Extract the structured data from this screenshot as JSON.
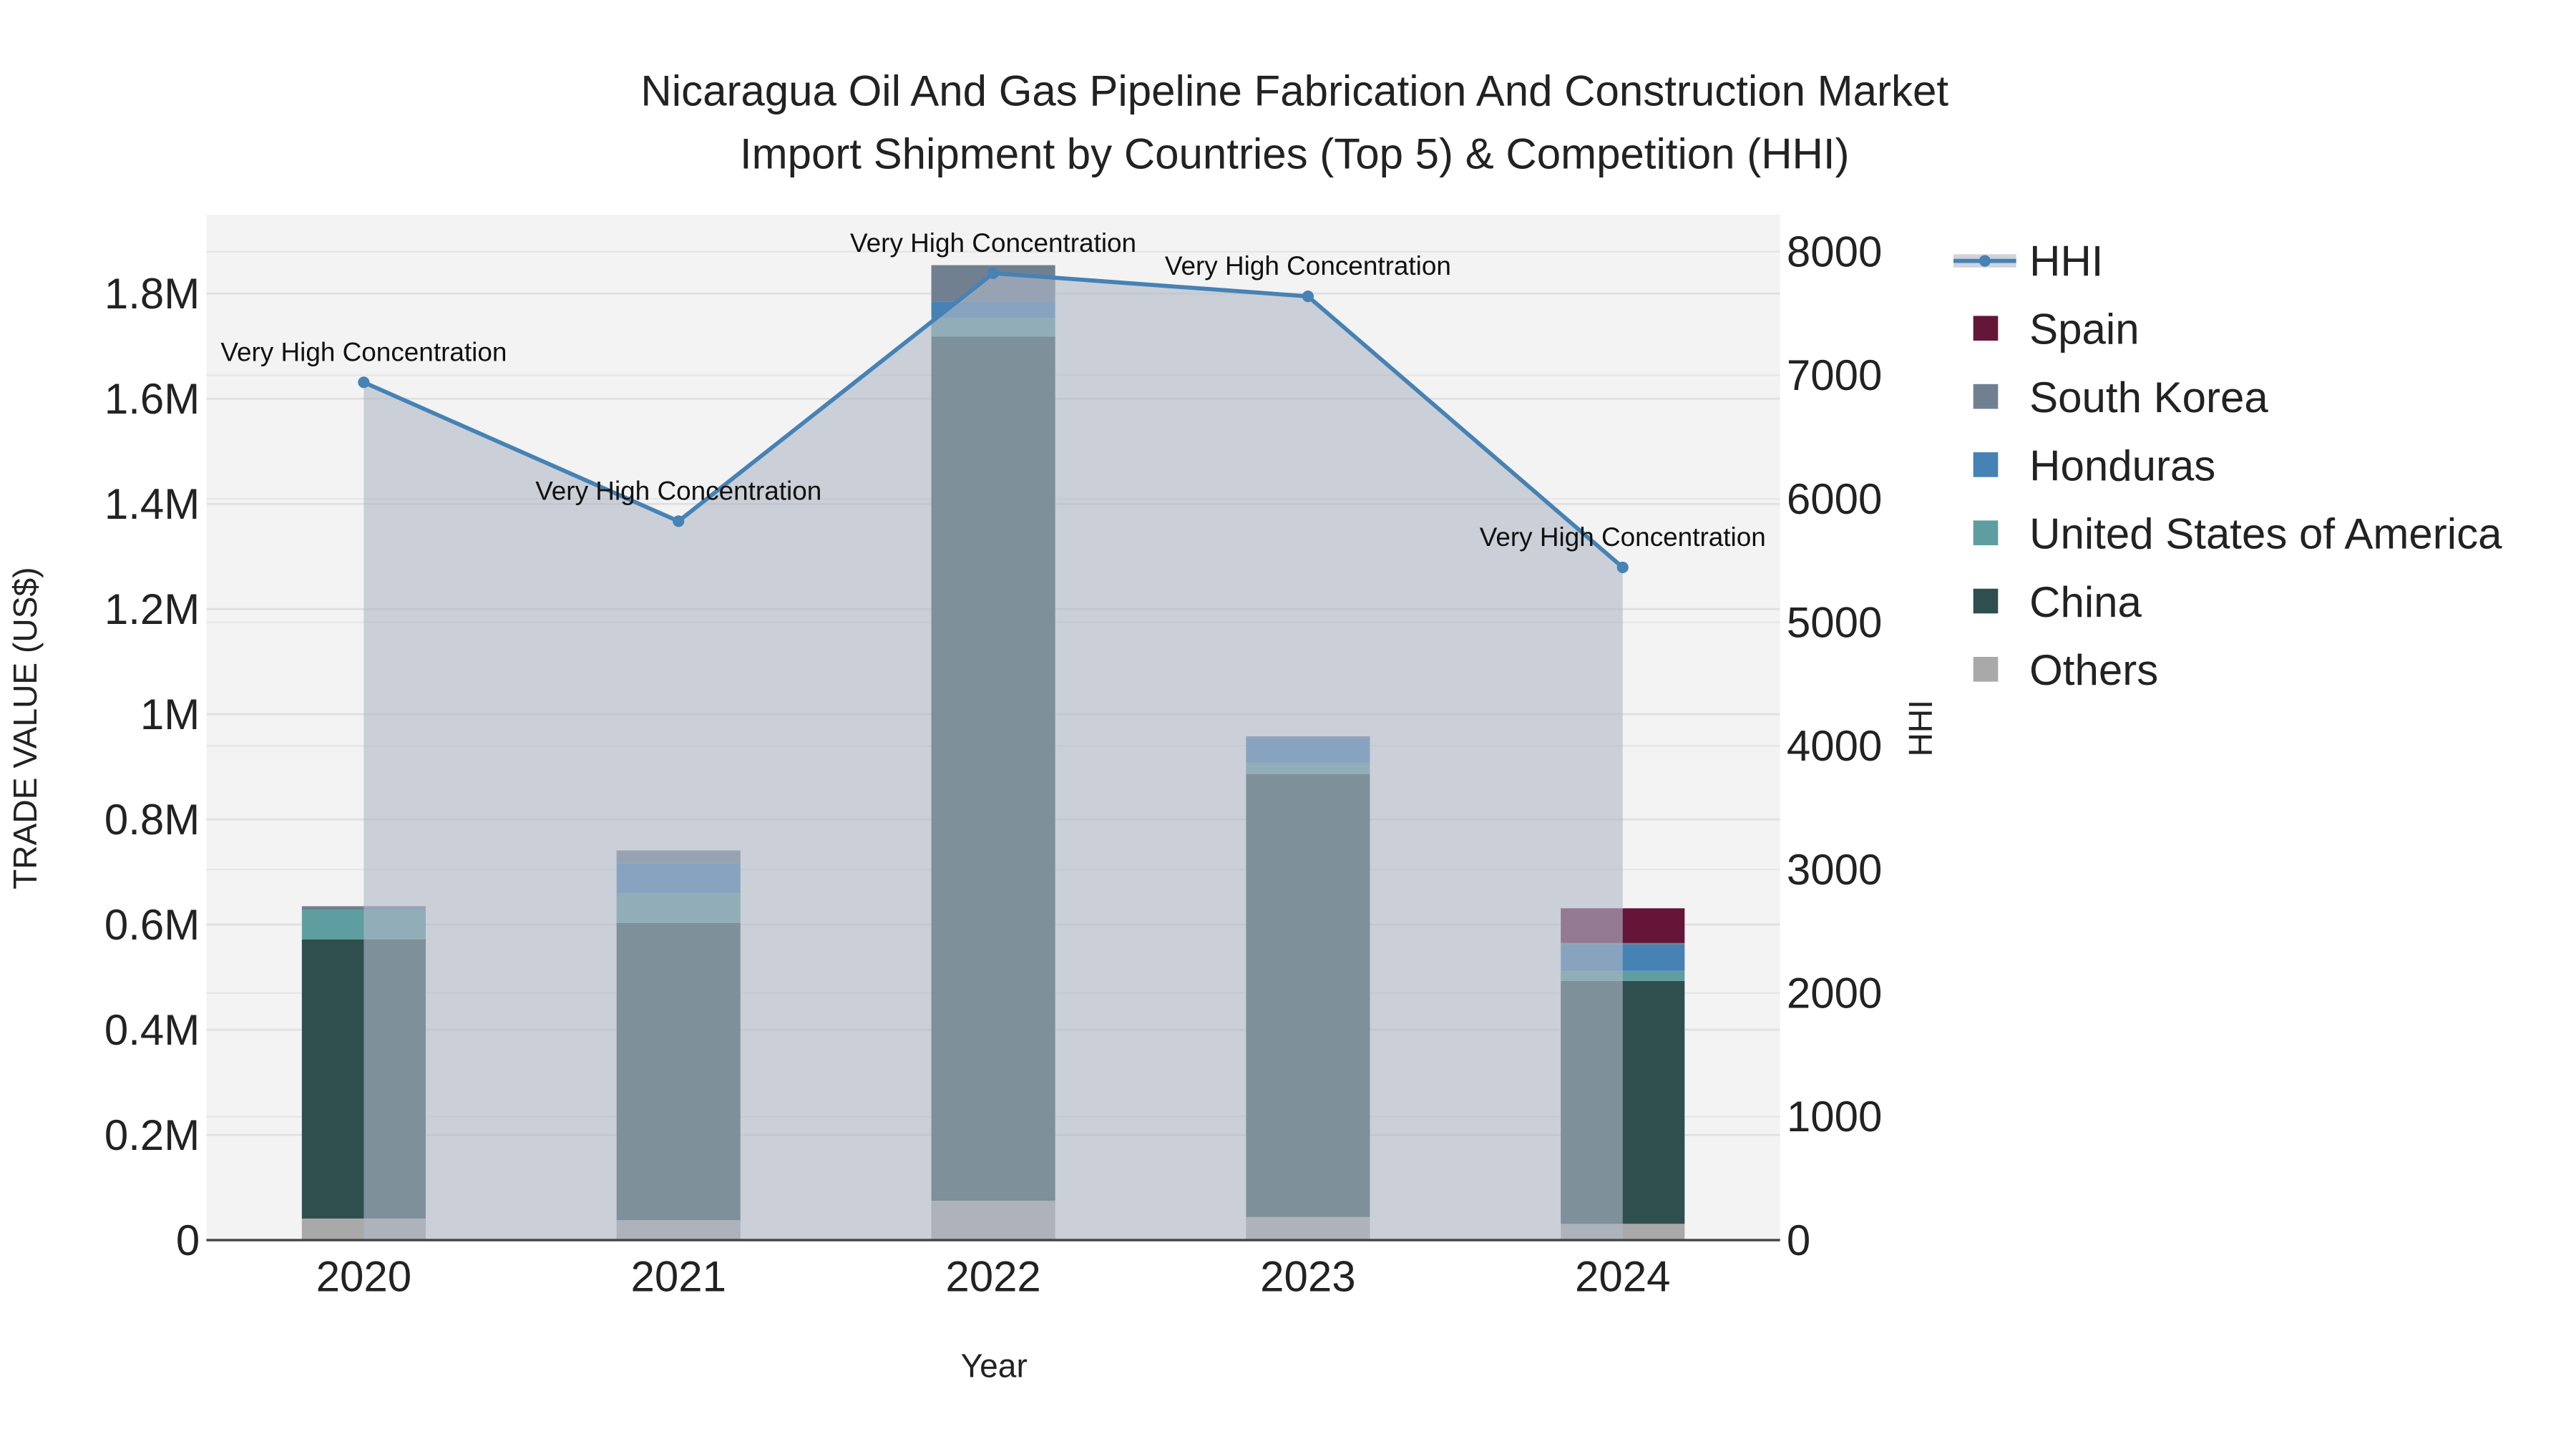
{
  "chart_data": {
    "type": "bar",
    "title_line1": "Nicaragua Oil And Gas Pipeline Fabrication And Construction Market",
    "title_line2": "Import Shipment by Countries (Top 5) & Competition (HHI)",
    "xlabel": "Year",
    "ylabel": "TRADE VALUE (US$)",
    "y2label": "HHI",
    "categories": [
      "2020",
      "2021",
      "2022",
      "2023",
      "2024"
    ],
    "ylim": [
      0,
      1.95
    ],
    "y_unit": "M",
    "yticks": [
      0,
      0.2,
      0.4,
      0.6,
      0.8,
      1.0,
      1.2,
      1.4,
      1.6,
      1.8
    ],
    "ytick_labels": [
      "0",
      "0.2M",
      "0.4M",
      "0.6M",
      "0.8M",
      "1M",
      "1.2M",
      "1.4M",
      "1.6M",
      "1.8M"
    ],
    "y2lim": [
      0,
      8300
    ],
    "y2ticks": [
      0,
      1000,
      2000,
      3000,
      4000,
      5000,
      6000,
      7000,
      8000
    ],
    "y2tick_labels": [
      "0",
      "1000",
      "2000",
      "3000",
      "4000",
      "5000",
      "6000",
      "7000",
      "8000"
    ],
    "grid": true,
    "legend_position": "right",
    "series": [
      {
        "name": "Others",
        "color": "#a9a9a9",
        "values": [
          0.041,
          0.038,
          0.075,
          0.044,
          0.031
        ]
      },
      {
        "name": "China",
        "color": "#2f4f4f",
        "values": [
          0.531,
          0.565,
          1.643,
          0.842,
          0.462
        ]
      },
      {
        "name": "United States of America",
        "color": "#5f9ea0",
        "values": [
          0.056,
          0.057,
          0.035,
          0.022,
          0.019
        ]
      },
      {
        "name": "Honduras",
        "color": "#4682b4",
        "values": [
          0.0,
          0.056,
          0.032,
          0.047,
          0.05
        ]
      },
      {
        "name": "South Korea",
        "color": "#708090",
        "values": [
          0.007,
          0.025,
          0.069,
          0.003,
          0.003
        ]
      },
      {
        "name": "Spain",
        "color": "#641538",
        "values": [
          0.0,
          0.0,
          0.0,
          0.0,
          0.066
        ]
      }
    ],
    "hhi": {
      "name": "HHI",
      "color": "#4682b4",
      "values": [
        6943,
        5819,
        7826,
        7639,
        5445
      ],
      "annotations": [
        "Very High Concentration",
        "Very High Concentration",
        "Very High Concentration",
        "Very High Concentration",
        "Very High Concentration"
      ]
    },
    "legend_order": [
      "HHI",
      "Spain",
      "South Korea",
      "Honduras",
      "United States of America",
      "China",
      "Others"
    ]
  }
}
